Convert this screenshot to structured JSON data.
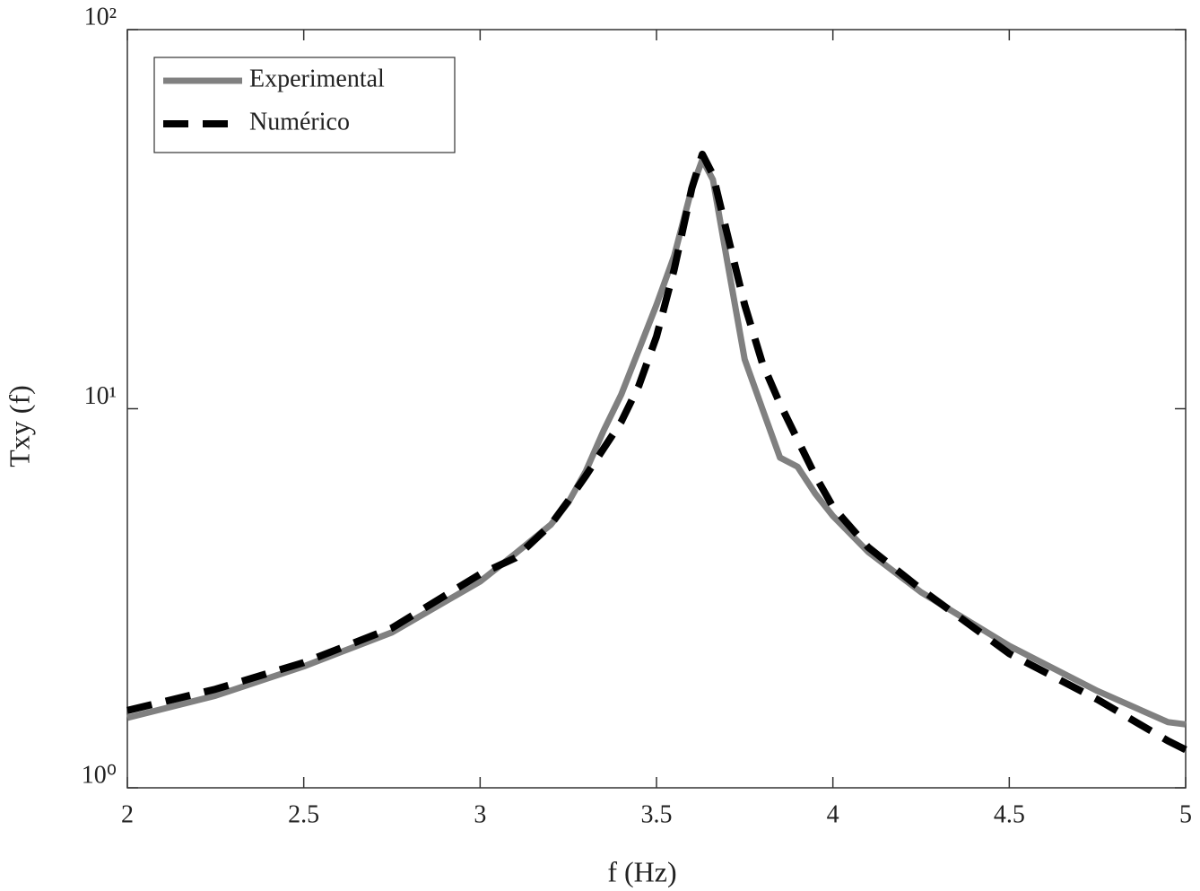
{
  "chart_data": {
    "type": "line",
    "xlabel": "f (Hz)",
    "ylabel": "Txy (f)",
    "x": [
      2,
      2.25,
      2.5,
      2.75,
      3,
      3.1,
      3.2,
      3.25,
      3.3,
      3.35,
      3.4,
      3.45,
      3.5,
      3.55,
      3.6,
      3.63,
      3.66,
      3.7,
      3.75,
      3.8,
      3.85,
      3.9,
      3.95,
      4,
      4.1,
      4.25,
      4.5,
      4.75,
      4.95,
      5
    ],
    "series": [
      {
        "name": "Experimental",
        "color": "#808080",
        "linestyle": "solid",
        "values": [
          1.53,
          1.75,
          2.09,
          2.57,
          3.5,
          4.15,
          4.94,
          5.66,
          6.85,
          8.75,
          10.9,
          14.3,
          18.8,
          25.3,
          38.1,
          45.4,
          40.2,
          24.6,
          13.5,
          10.0,
          7.43,
          7.03,
          5.97,
          5.21,
          4.19,
          3.28,
          2.37,
          1.8,
          1.49,
          1.47
        ]
      },
      {
        "name": "Numérico",
        "color": "#000000",
        "linestyle": "dashed",
        "values": [
          1.6,
          1.82,
          2.14,
          2.64,
          3.66,
          4.04,
          4.94,
          5.72,
          6.66,
          7.85,
          9.24,
          11.5,
          15.5,
          23.3,
          38.1,
          46.9,
          41.4,
          29.0,
          18.8,
          13.2,
          10.3,
          8.28,
          6.66,
          5.51,
          4.31,
          3.34,
          2.26,
          1.71,
          1.33,
          1.26
        ]
      }
    ],
    "xlim": [
      2,
      5
    ],
    "xticks": [
      2,
      2.5,
      3,
      3.5,
      4,
      4.5,
      5
    ],
    "ylim": [
      1,
      100
    ],
    "yscale": "log",
    "yticks": [
      {
        "value": 1,
        "label": "10⁰"
      },
      {
        "value": 10,
        "label": "10¹"
      },
      {
        "value": 100,
        "label": "10²"
      }
    ],
    "grid": false,
    "legend": "upper left"
  }
}
